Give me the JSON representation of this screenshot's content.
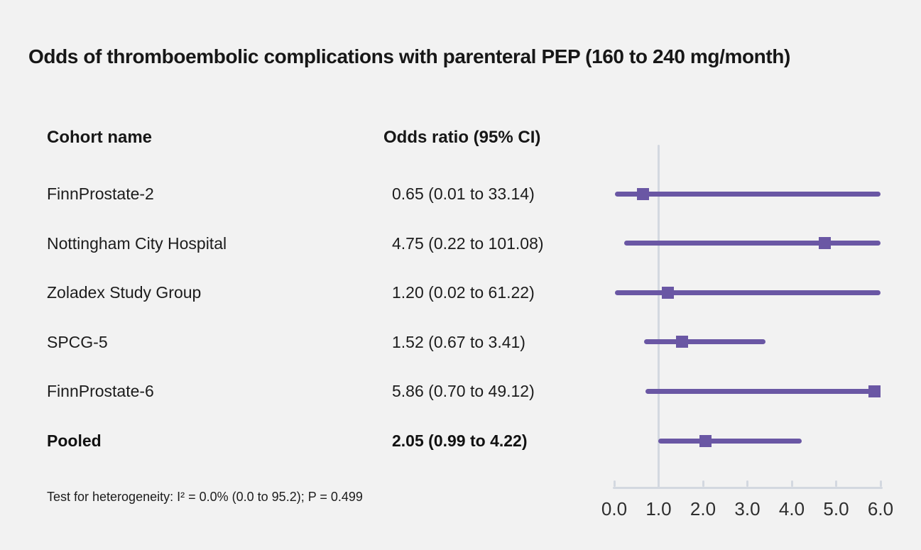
{
  "figure": {
    "title": "Odds of thromboembolic complications with parenteral PEP (160 to 240 mg/month)",
    "column_headers": {
      "cohort": "Cohort name",
      "odds_ratio": "Odds ratio (95% CI)"
    },
    "footnote": "Test for heterogeneity: I² = 0.0% (0.0 to 95.2); P = 0.499"
  },
  "chart_data": {
    "type": "scatter",
    "subtype": "forest-plot",
    "title": "Odds of thromboembolic complications with parenteral PEP (160 to 240 mg/month)",
    "xlabel": "",
    "ylabel": "",
    "xlim": [
      0.0,
      6.0
    ],
    "x_tick_values": [
      0.0,
      1.0,
      2.0,
      3.0,
      4.0,
      5.0,
      6.0
    ],
    "x_tick_labels": [
      "0.0",
      "1.0",
      "2.0",
      "3.0",
      "4.0",
      "5.0",
      "6.0"
    ],
    "reference_line_x": 1.0,
    "grid": false,
    "legend_position": "none",
    "rows": [
      {
        "cohort": "FinnProstate-2",
        "odds_ratio": 0.65,
        "ci_low": 0.01,
        "ci_high": 33.14,
        "value_label": "0.65 (0.01 to 33.14)",
        "bold": false
      },
      {
        "cohort": "Nottingham City Hospital",
        "odds_ratio": 4.75,
        "ci_low": 0.22,
        "ci_high": 101.08,
        "value_label": "4.75 (0.22 to 101.08)",
        "bold": false
      },
      {
        "cohort": "Zoladex Study Group",
        "odds_ratio": 1.2,
        "ci_low": 0.02,
        "ci_high": 61.22,
        "value_label": "1.20 (0.02 to 61.22)",
        "bold": false
      },
      {
        "cohort": "SPCG-5",
        "odds_ratio": 1.52,
        "ci_low": 0.67,
        "ci_high": 3.41,
        "value_label": "1.52 (0.67 to 3.41)",
        "bold": false
      },
      {
        "cohort": "FinnProstate-6",
        "odds_ratio": 5.86,
        "ci_low": 0.7,
        "ci_high": 49.12,
        "value_label": "5.86 (0.70 to 49.12)",
        "bold": false
      },
      {
        "cohort": "Pooled",
        "odds_ratio": 2.05,
        "ci_low": 0.99,
        "ci_high": 4.22,
        "value_label": "2.05 (0.99 to 4.22)",
        "bold": true
      }
    ],
    "colors": {
      "marker": "#6a57a4",
      "axis": "#d3d8e0",
      "background": "#f2f2f2",
      "text": "#1a1a1a"
    }
  }
}
